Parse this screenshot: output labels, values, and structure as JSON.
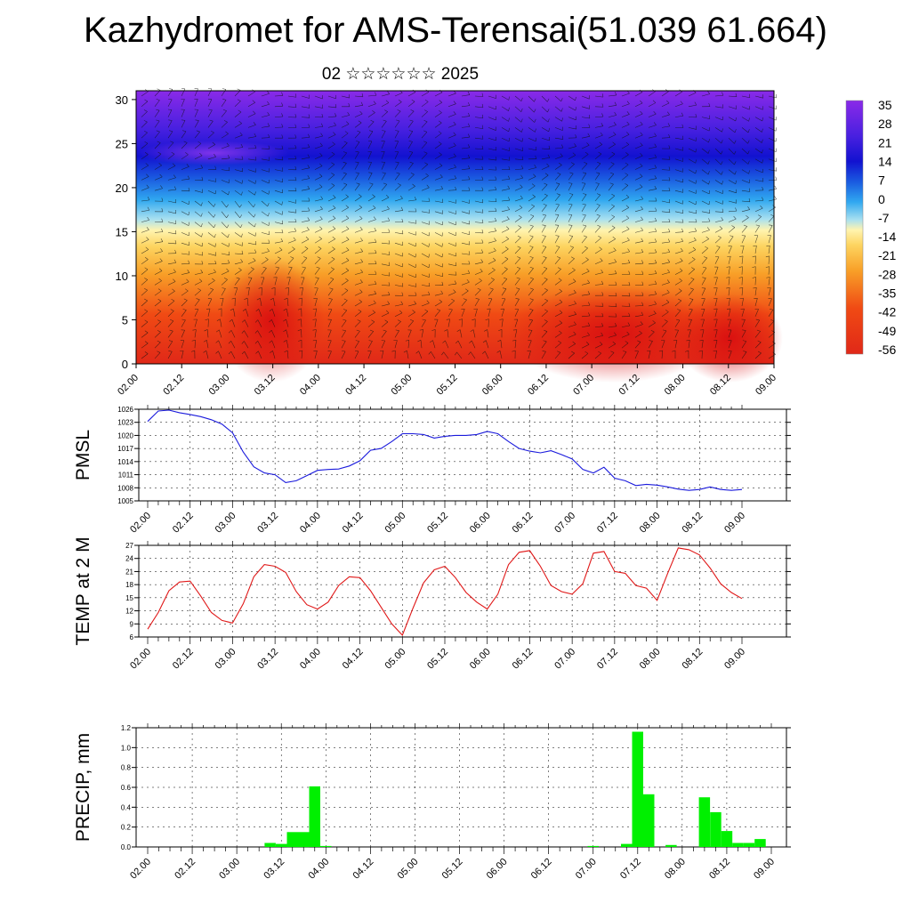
{
  "title": "Kazhydromet for AMS-Terensai(51.039 61.664)",
  "subtitle": "02 ☆☆☆☆☆☆ 2025",
  "colorbar": {
    "labels": [
      "35",
      "28",
      "21",
      "14",
      "7",
      "0",
      "-7",
      "-14",
      "-21",
      "-28",
      "-35",
      "-42",
      "-49",
      "-56"
    ],
    "colors": [
      "#f4b8b8",
      "#e8202a",
      "#f05020",
      "#f88020",
      "#fcb030",
      "#fdd860",
      "#fef4a0",
      "#c8eaf0",
      "#50c8f0",
      "#2090e8",
      "#1850e0",
      "#1010d8",
      "#5020e8",
      "#8028e8"
    ]
  },
  "time_ticks": [
    "02.00",
    "02.12",
    "03.00",
    "03.12",
    "04.00",
    "04.12",
    "05.00",
    "05.12",
    "06.00",
    "06.12",
    "07.00",
    "07.12",
    "08.00",
    "08.12",
    "09.00"
  ],
  "chart_data": [
    {
      "type": "heatmap",
      "name": "vertical temperature cross-section with wind barbs",
      "y_ticks": [
        "0",
        "5",
        "10",
        "15",
        "20",
        "25",
        "30"
      ],
      "ylim": [
        0,
        31
      ],
      "xlim": [
        "02.00",
        "09.00"
      ],
      "color_scale_range": [
        -56,
        35
      ]
    },
    {
      "type": "line",
      "ylabel": "PMSL",
      "y_ticks": [
        "1026",
        "1023",
        "1020",
        "1017",
        "1014",
        "1011",
        "1008",
        "1005"
      ],
      "ylim": [
        1005,
        1026
      ],
      "color": "#1a1adc",
      "x_step_hours": 3,
      "values": [
        1023.2,
        1025.6,
        1025.8,
        1025.2,
        1024.8,
        1024.3,
        1023.6,
        1022.6,
        1020.6,
        1016.2,
        1012.8,
        1011.4,
        1011.0,
        1009.2,
        1009.6,
        1010.8,
        1012.0,
        1012.2,
        1012.3,
        1013.0,
        1014.2,
        1016.6,
        1017.0,
        1018.6,
        1020.4,
        1020.4,
        1020.2,
        1019.4,
        1019.8,
        1020.0,
        1020.0,
        1020.2,
        1020.9,
        1020.4,
        1018.6,
        1017.0,
        1016.4,
        1016.0,
        1016.5,
        1015.6,
        1014.6,
        1012.2,
        1011.4,
        1012.7,
        1010.2,
        1009.6,
        1008.5,
        1008.8,
        1008.6,
        1008.2,
        1007.7,
        1007.4,
        1007.6,
        1008.2,
        1007.6,
        1007.4,
        1007.6
      ]
    },
    {
      "type": "line",
      "ylabel": "TEMP at 2 M",
      "y_ticks": [
        "27",
        "24",
        "21",
        "18",
        "15",
        "12",
        "9",
        "6"
      ],
      "ylim": [
        6,
        27
      ],
      "color": "#e01818",
      "x_step_hours": 3,
      "values": [
        7.8,
        11.6,
        16.6,
        18.6,
        18.8,
        15.4,
        11.6,
        9.8,
        9.2,
        13.6,
        19.8,
        22.6,
        22.2,
        20.8,
        16.4,
        13.4,
        12.4,
        14.0,
        17.8,
        19.8,
        19.6,
        16.6,
        12.8,
        9.0,
        6.4,
        12.6,
        18.4,
        21.4,
        22.2,
        19.6,
        16.2,
        14.0,
        12.4,
        15.8,
        22.6,
        25.4,
        25.8,
        22.2,
        17.8,
        16.4,
        15.8,
        18.2,
        25.2,
        25.6,
        21.0,
        20.6,
        17.8,
        17.2,
        14.4,
        20.6,
        26.4,
        26.0,
        24.8,
        21.8,
        18.2,
        16.2,
        14.8
      ]
    },
    {
      "type": "bar",
      "ylabel": "PRECIP, mm",
      "y_ticks": [
        "1.2",
        "1.0",
        "0.8",
        "0.6",
        "0.4",
        "0.2",
        "0.0"
      ],
      "ylim": [
        0,
        1.2
      ],
      "color": "#00f000",
      "x_step_hours": 3,
      "values": [
        0,
        0,
        0,
        0,
        0,
        0,
        0,
        0,
        0,
        0,
        0,
        0.04,
        0.03,
        0.15,
        0.15,
        0.61,
        0.01,
        0,
        0,
        0,
        0,
        0,
        0,
        0,
        0,
        0,
        0,
        0,
        0,
        0,
        0,
        0,
        0,
        0,
        0,
        0,
        0,
        0,
        0,
        0,
        0.01,
        0,
        0,
        0.03,
        1.16,
        0.53,
        0,
        0.02,
        0,
        0,
        0.5,
        0.35,
        0.16,
        0.04,
        0.04,
        0.08
      ]
    }
  ]
}
